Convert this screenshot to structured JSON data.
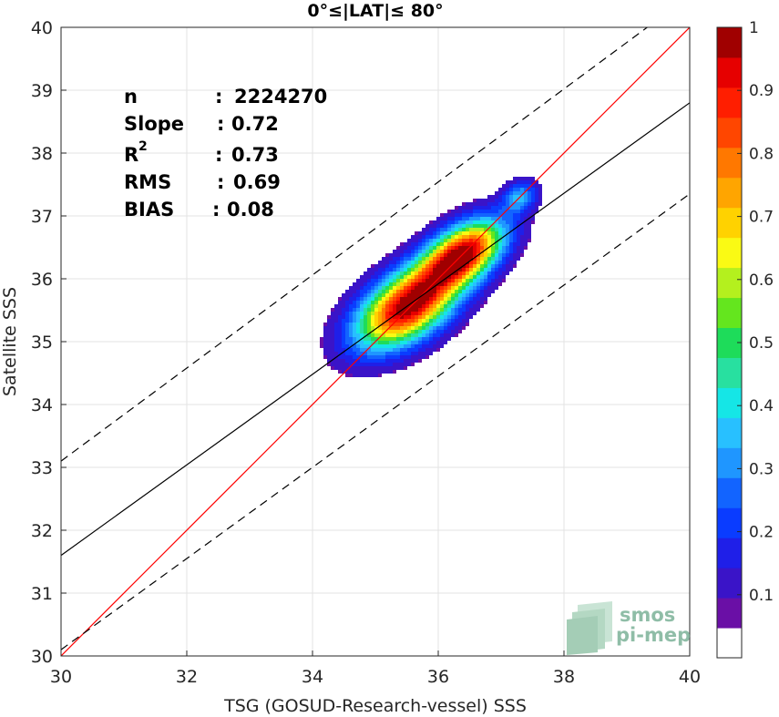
{
  "chart_data": {
    "type": "contour-density-scatter",
    "title": "0°≤|LAT|≤ 80°",
    "xlabel": "TSG (GOSUD-Research-vessel) SSS",
    "ylabel": "Satellite SSS",
    "xlim": [
      30,
      40
    ],
    "ylim": [
      30,
      40
    ],
    "xticks": [
      "30",
      "32",
      "34",
      "36",
      "38",
      "40"
    ],
    "yticks": [
      "30",
      "31",
      "32",
      "33",
      "34",
      "35",
      "36",
      "37",
      "38",
      "39",
      "40"
    ],
    "grid": true,
    "stats": {
      "n": "2224270",
      "slope": "0.72",
      "r2": "0.73",
      "rms": "0.69",
      "bias": "0.08"
    },
    "stat_labels": {
      "n": "n",
      "slope": "Slope",
      "r_base": "R",
      "r_sup": "2",
      "rms": "RMS",
      "bias": "BIAS"
    },
    "lines": {
      "identity": {
        "x": [
          30,
          40
        ],
        "y": [
          30,
          40
        ],
        "color": "#ff0000"
      },
      "regression": {
        "x": [
          30,
          40
        ],
        "y": [
          31.6,
          38.8
        ],
        "color": "#000000"
      },
      "upper_bound": {
        "x": [
          30,
          40
        ],
        "y": [
          33.1,
          40.5
        ],
        "color": "#000000",
        "dash": true
      },
      "lower_bound": {
        "x": [
          30,
          40
        ],
        "y": [
          30.1,
          37.35
        ],
        "color": "#000000",
        "dash": true
      }
    },
    "density_peaks": [
      {
        "x": 35.5,
        "y": 35.55,
        "value": 1.0
      },
      {
        "x": 36.4,
        "y": 36.4,
        "value": 0.95
      },
      {
        "x": 37.3,
        "y": 37.3,
        "value": 0.3
      }
    ],
    "colorbar": {
      "range": [
        0,
        1
      ],
      "ticks": [
        "0.1",
        "0.2",
        "0.3",
        "0.4",
        "0.5",
        "0.6",
        "0.7",
        "0.8",
        "0.9",
        "1"
      ],
      "colors": [
        "#ffffff",
        "#6a0fa6",
        "#3a14c8",
        "#1f1fe8",
        "#0a3cff",
        "#1264ff",
        "#1f96ff",
        "#28c0ff",
        "#15e6e6",
        "#28e0a0",
        "#1edc5a",
        "#64e61e",
        "#b4f01e",
        "#fafa14",
        "#ffd200",
        "#ffa500",
        "#ff7800",
        "#ff4600",
        "#ff1e00",
        "#e60000",
        "#a00000"
      ]
    }
  },
  "watermark": {
    "line1": "smos",
    "line2": "pi-mep"
  }
}
